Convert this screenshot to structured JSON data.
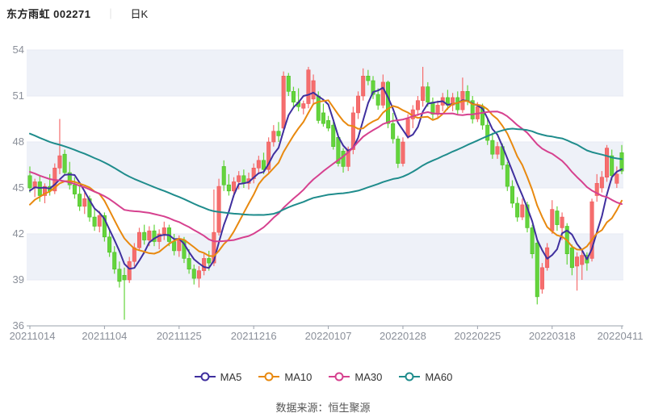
{
  "header": {
    "title": "东方雨虹 002271",
    "separator": "｜",
    "period_label": "日K"
  },
  "footer": {
    "source_note": "数据来源：恒生聚源"
  },
  "legend": {
    "items": [
      {
        "label": "MA5",
        "color": "#3f2f9e"
      },
      {
        "label": "MA10",
        "color": "#e8890f"
      },
      {
        "label": "MA30",
        "color": "#d6418f"
      },
      {
        "label": "MA60",
        "color": "#1f8c8c"
      }
    ]
  },
  "chart_data": {
    "type": "candlestick",
    "title": "东方雨虹 002271 日K",
    "y_ticks": [
      54,
      51,
      48,
      45,
      42,
      39,
      36
    ],
    "ylim": [
      36,
      54
    ],
    "x_tick_labels": [
      "20211014",
      "20211104",
      "20211125",
      "20211216",
      "20220107",
      "20220128",
      "20220225",
      "20220318",
      "20220411"
    ],
    "x_tick_indices": [
      0,
      15,
      30,
      45,
      60,
      75,
      90,
      105,
      119
    ],
    "grid": "horizontal-bands",
    "legend_position": "bottom",
    "colors": {
      "up_fill": "#f56e6e",
      "up_stroke": "#ef5a5a",
      "down_fill": "#64d43c",
      "down_stroke": "#4cc026",
      "band": "#eef1f8",
      "gridline": "#e7eaf3",
      "axis": "#9aa0ab",
      "tick_label": "#8a8f99",
      "title_color": "#222222"
    },
    "ma_windows": {
      "MA5": 5,
      "MA10": 10,
      "MA30": 30,
      "MA60": 60
    },
    "ma_prehistory_closes": [
      53.5,
      53.3,
      53.1,
      52.9,
      52.7,
      52.5,
      52.3,
      52.1,
      51.9,
      51.7,
      51.6,
      51.5,
      51.4,
      51.3,
      51.2,
      51.1,
      51.0,
      50.9,
      50.8,
      50.7,
      50.5,
      50.3,
      50.1,
      49.9,
      49.8,
      49.7,
      49.6,
      49.5,
      49.4,
      49.2,
      49.0,
      48.8,
      48.6,
      48.4,
      48.2,
      48.0,
      47.8,
      47.7,
      47.6,
      47.5,
      47.4,
      47.3,
      47.2,
      47.1,
      47.0,
      46.8,
      46.6,
      46.4,
      46.2,
      46.0,
      41.8,
      42.2,
      42.6,
      43.0,
      43.4,
      43.8,
      44.3,
      44.7,
      45.0,
      45.1
    ],
    "candles": [
      [
        "20211014",
        45.8,
        46.4,
        44.7,
        45.0
      ],
      [
        "20211015",
        45.0,
        45.6,
        44.4,
        45.4
      ],
      [
        "20211018",
        45.4,
        45.8,
        44.1,
        44.5
      ],
      [
        "20211019",
        44.5,
        45.3,
        44.0,
        45.1
      ],
      [
        "20211020",
        45.1,
        45.9,
        44.5,
        44.8
      ],
      [
        "20211021",
        44.8,
        46.6,
        44.6,
        46.3
      ],
      [
        "20211022",
        46.3,
        49.5,
        45.9,
        47.1
      ],
      [
        "20211025",
        47.2,
        47.5,
        45.8,
        46.0
      ],
      [
        "20211026",
        46.0,
        46.7,
        44.9,
        45.2
      ],
      [
        "20211027",
        45.2,
        45.7,
        44.3,
        44.6
      ],
      [
        "20211028",
        44.6,
        45.1,
        43.5,
        43.8
      ],
      [
        "20211029",
        43.8,
        44.7,
        43.3,
        44.3
      ],
      [
        "20211101",
        44.3,
        44.5,
        42.8,
        43.1
      ],
      [
        "20211102",
        43.1,
        43.7,
        42.2,
        42.5
      ],
      [
        "20211103",
        42.5,
        43.5,
        42.1,
        43.2
      ],
      [
        "20211104",
        43.2,
        43.4,
        41.5,
        41.8
      ],
      [
        "20211105",
        41.8,
        42.3,
        40.5,
        40.8
      ],
      [
        "20211108",
        40.8,
        41.2,
        39.4,
        39.7
      ],
      [
        "20211109",
        39.7,
        40.2,
        38.5,
        38.9
      ],
      [
        "20211110",
        39.3,
        39.8,
        36.4,
        39.0
      ],
      [
        "20211111",
        39.0,
        40.5,
        38.8,
        40.2
      ],
      [
        "20211112",
        40.2,
        41.4,
        39.9,
        41.1
      ],
      [
        "20211115",
        41.1,
        42.4,
        40.9,
        42.1
      ],
      [
        "20211116",
        42.1,
        42.6,
        41.3,
        41.6
      ],
      [
        "20211117",
        41.6,
        42.5,
        41.2,
        42.2
      ],
      [
        "20211118",
        42.2,
        42.6,
        41.2,
        41.5
      ],
      [
        "20211119",
        41.5,
        42.3,
        41.0,
        42.0
      ],
      [
        "20211122",
        42.0,
        42.8,
        41.6,
        42.4
      ],
      [
        "20211123",
        42.4,
        42.6,
        41.2,
        41.5
      ],
      [
        "20211124",
        41.5,
        42.0,
        40.6,
        40.9
      ],
      [
        "20211125",
        40.9,
        41.9,
        40.5,
        41.6
      ],
      [
        "20211126",
        41.6,
        41.8,
        40.1,
        40.4
      ],
      [
        "20211129",
        40.4,
        41.0,
        39.4,
        39.7
      ],
      [
        "20211130",
        39.7,
        40.0,
        38.7,
        39.1
      ],
      [
        "20211201",
        39.1,
        39.9,
        38.5,
        39.6
      ],
      [
        "20211202",
        39.6,
        40.7,
        39.3,
        40.4
      ],
      [
        "20211203",
        40.4,
        40.9,
        39.6,
        40.1
      ],
      [
        "20211206",
        40.1,
        44.9,
        39.9,
        42.1
      ],
      [
        "20211207",
        42.1,
        45.6,
        41.9,
        45.1
      ],
      [
        "20211208",
        46.4,
        46.8,
        44.8,
        45.2
      ],
      [
        "20211209",
        45.2,
        45.9,
        44.5,
        44.8
      ],
      [
        "20211210",
        44.8,
        45.7,
        44.4,
        45.4
      ],
      [
        "20211213",
        45.4,
        46.1,
        44.9,
        45.8
      ],
      [
        "20211214",
        45.8,
        46.2,
        45.0,
        45.3
      ],
      [
        "20211215",
        45.3,
        46.0,
        44.9,
        45.6
      ],
      [
        "20211216",
        45.6,
        46.6,
        45.3,
        46.3
      ],
      [
        "20211217",
        46.3,
        47.1,
        45.9,
        46.8
      ],
      [
        "20211220",
        46.8,
        47.3,
        45.9,
        46.2
      ],
      [
        "20211221",
        46.2,
        48.3,
        46.0,
        48.0
      ],
      [
        "20211222",
        48.0,
        49.1,
        47.7,
        48.7
      ],
      [
        "20211223",
        48.7,
        49.3,
        48.0,
        48.4
      ],
      [
        "20211224",
        48.9,
        52.6,
        48.6,
        52.3
      ],
      [
        "20211227",
        52.3,
        52.5,
        51.0,
        51.3
      ],
      [
        "20211228",
        51.3,
        51.6,
        50.3,
        50.6
      ],
      [
        "20211229",
        50.6,
        51.5,
        50.0,
        50.3
      ],
      [
        "20211230",
        50.2,
        50.7,
        49.8,
        50.5
      ],
      [
        "20211231",
        50.5,
        52.9,
        50.2,
        52.7
      ],
      [
        "20220104",
        50.8,
        52.4,
        50.4,
        52.0
      ],
      [
        "20220105",
        51.0,
        51.3,
        49.2,
        49.4
      ],
      [
        "20220106",
        49.9,
        50.5,
        49.0,
        49.2
      ],
      [
        "20220107",
        49.4,
        49.7,
        48.7,
        48.9
      ],
      [
        "20220110",
        49.1,
        49.3,
        47.5,
        47.7
      ],
      [
        "20220111",
        48.3,
        48.5,
        46.4,
        46.6
      ],
      [
        "20220112",
        47.4,
        47.6,
        46.0,
        46.4
      ],
      [
        "20220113",
        46.4,
        47.7,
        46.1,
        47.5
      ],
      [
        "20220114",
        47.5,
        50.3,
        47.2,
        49.9
      ],
      [
        "20220117",
        49.9,
        51.3,
        49.5,
        51.0
      ],
      [
        "20220118",
        51.0,
        52.8,
        50.7,
        52.3
      ],
      [
        "20220119",
        52.3,
        52.7,
        51.7,
        52.0
      ],
      [
        "20220120",
        52.0,
        52.3,
        50.8,
        51.1
      ],
      [
        "20220121",
        51.1,
        51.5,
        50.1,
        50.4
      ],
      [
        "20220124",
        50.4,
        52.4,
        50.2,
        51.9
      ],
      [
        "20220125",
        51.9,
        52.0,
        48.9,
        49.2
      ],
      [
        "20220126",
        49.2,
        49.9,
        47.9,
        48.2
      ],
      [
        "20220127",
        48.2,
        48.4,
        46.3,
        46.6
      ],
      [
        "20220128",
        46.6,
        48.3,
        46.4,
        48.0
      ],
      [
        "20220207",
        48.4,
        49.8,
        48.2,
        49.5
      ],
      [
        "20220208",
        49.5,
        50.4,
        48.9,
        50.1
      ],
      [
        "20220209",
        50.1,
        51.0,
        49.7,
        50.7
      ],
      [
        "20220210",
        50.7,
        52.9,
        50.3,
        51.6
      ],
      [
        "20220211",
        51.6,
        51.9,
        50.3,
        50.6
      ],
      [
        "20220214",
        50.6,
        50.9,
        49.5,
        49.8
      ],
      [
        "20220215",
        49.8,
        50.7,
        49.6,
        50.4
      ],
      [
        "20220216",
        50.4,
        51.2,
        50.0,
        50.9
      ],
      [
        "20220217",
        50.9,
        51.4,
        50.1,
        50.4
      ],
      [
        "20220218",
        50.4,
        51.2,
        50.0,
        50.9
      ],
      [
        "20220221",
        50.9,
        51.3,
        49.8,
        50.1
      ],
      [
        "20220222",
        50.1,
        52.2,
        49.9,
        51.3
      ],
      [
        "20220223",
        51.3,
        51.7,
        50.4,
        50.7
      ],
      [
        "20220224",
        50.7,
        51.0,
        49.2,
        49.5
      ],
      [
        "20220225",
        49.5,
        50.6,
        49.3,
        50.3
      ],
      [
        "20220228",
        50.3,
        50.5,
        48.8,
        49.1
      ],
      [
        "20220301",
        49.1,
        49.5,
        47.8,
        48.1
      ],
      [
        "20220302",
        48.1,
        48.6,
        46.9,
        47.2
      ],
      [
        "20220303",
        47.2,
        48.0,
        46.9,
        47.7
      ],
      [
        "20220304",
        47.7,
        47.9,
        46.2,
        46.5
      ],
      [
        "20220307",
        46.5,
        46.7,
        44.8,
        45.1
      ],
      [
        "20220308",
        45.1,
        45.5,
        43.7,
        44.0
      ],
      [
        "20220309",
        44.0,
        44.4,
        42.8,
        43.1
      ],
      [
        "20220310",
        43.1,
        44.3,
        42.9,
        43.9
      ],
      [
        "20220311",
        43.9,
        44.1,
        42.1,
        42.4
      ],
      [
        "20220314",
        42.4,
        42.6,
        40.4,
        40.7
      ],
      [
        "20220315",
        41.4,
        41.6,
        37.4,
        37.9
      ],
      [
        "20220316",
        38.4,
        40.1,
        38.1,
        39.8
      ],
      [
        "20220317",
        39.8,
        41.4,
        39.6,
        41.1
      ],
      [
        "20220318",
        42.2,
        44.2,
        42.0,
        43.6
      ],
      [
        "20220321",
        43.5,
        43.8,
        42.2,
        42.6
      ],
      [
        "20220322",
        42.4,
        43.4,
        41.6,
        43.1
      ],
      [
        "20220323",
        42.5,
        42.7,
        40.0,
        40.7
      ],
      [
        "20220324",
        41.1,
        41.3,
        39.3,
        39.8
      ],
      [
        "20220325",
        39.9,
        40.8,
        38.3,
        40.5
      ],
      [
        "20220328",
        40.0,
        40.9,
        39.0,
        40.6
      ],
      [
        "20220329",
        40.6,
        40.8,
        39.6,
        40.1
      ],
      [
        "20220330",
        40.4,
        44.3,
        40.2,
        44.1
      ],
      [
        "20220331",
        44.5,
        45.9,
        44.1,
        45.3
      ],
      [
        "20220401",
        45.0,
        46.1,
        44.7,
        45.7
      ],
      [
        "20220406",
        45.7,
        47.8,
        45.4,
        47.6
      ],
      [
        "20220407",
        47.1,
        47.5,
        45.5,
        45.8
      ],
      [
        "20220408",
        45.3,
        46.4,
        45.0,
        45.9
      ],
      [
        "20220411",
        47.3,
        47.8,
        45.9,
        46.1
      ]
    ],
    "source_note": "数据来源：恒生聚源"
  }
}
